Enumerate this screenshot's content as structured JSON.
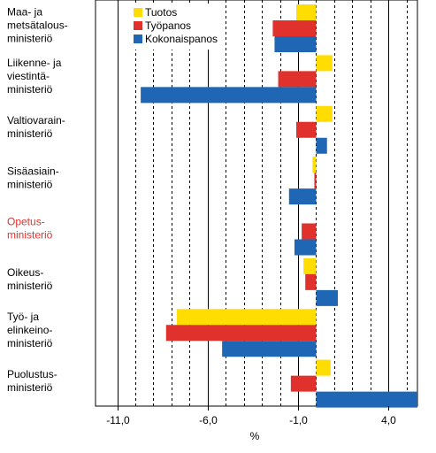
{
  "chart_data": {
    "type": "bar",
    "orientation": "horizontal",
    "categories": [
      {
        "lines": [
          "Maa- ja",
          "metsätalous-",
          "ministeriö"
        ],
        "color": "#000000"
      },
      {
        "lines": [
          "Liikenne- ja",
          "viestintä-",
          "ministeriö"
        ],
        "color": "#000000"
      },
      {
        "lines": [
          "Valtiovarain-",
          "ministeriö"
        ],
        "color": "#000000"
      },
      {
        "lines": [
          "Sisäasiain-",
          "ministeriö"
        ],
        "color": "#000000"
      },
      {
        "lines": [
          "Opetus-",
          "ministeriö"
        ],
        "color": "#e0312d"
      },
      {
        "lines": [
          "Oikeus-",
          "ministeriö"
        ],
        "color": "#000000"
      },
      {
        "lines": [
          "Työ- ja",
          "elinkeino-",
          "ministeriö"
        ],
        "color": "#000000"
      },
      {
        "lines": [
          "Puolustus-",
          "ministeriö"
        ],
        "color": "#000000"
      }
    ],
    "series": [
      {
        "name": "Tuotos",
        "color": "#ffdd00",
        "values": [
          -1.1,
          0.9,
          0.9,
          -0.2,
          0.0,
          -0.7,
          -7.7,
          0.8
        ]
      },
      {
        "name": "Työpanos",
        "color": "#e0312d",
        "values": [
          -2.4,
          -2.1,
          -1.1,
          -0.1,
          -0.8,
          -0.6,
          -8.3,
          -1.4
        ]
      },
      {
        "name": "Kokonaispanos",
        "color": "#1f66b5",
        "values": [
          -2.3,
          -9.7,
          0.6,
          -1.5,
          -1.2,
          1.2,
          -5.2,
          5.6
        ]
      }
    ],
    "xlim": [
      -12.2,
      5.6
    ],
    "xticks": [
      -11.0,
      -6.0,
      -1.0,
      4.0
    ],
    "xtick_labels": [
      "-11,0",
      "-6,0",
      "-1,0",
      "4,0"
    ],
    "xlabel": "%",
    "gridlines": [
      -11,
      -10,
      -9,
      -8,
      -7,
      -6,
      -5,
      -4,
      -3,
      -2,
      -1,
      0,
      1,
      2,
      3,
      4,
      5
    ],
    "solid_gridlines": [
      -11,
      -6,
      -1,
      4
    ],
    "legend_position": "top-left"
  }
}
